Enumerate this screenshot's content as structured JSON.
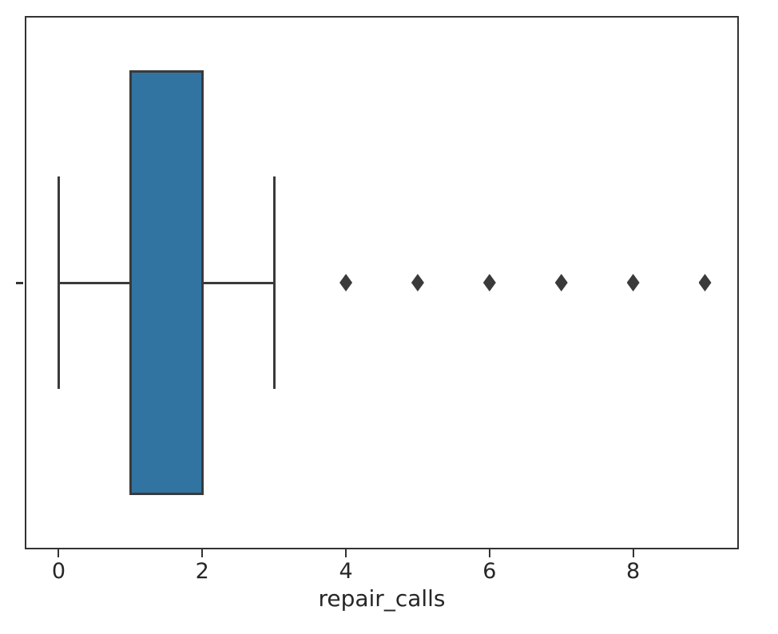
{
  "chart_data": {
    "type": "boxplot",
    "orientation": "horizontal",
    "title": "",
    "xlabel": "repair_calls",
    "ylabel": "",
    "xlim": [
      -0.45,
      9.45
    ],
    "x_ticks": [
      0,
      2,
      4,
      6,
      8
    ],
    "grid": false,
    "legend": false,
    "series": [
      {
        "name": "repair_calls",
        "whisker_low": 0,
        "q1": 1,
        "median": 1,
        "q3": 2,
        "whisker_high": 3,
        "outliers": [
          4,
          5,
          6,
          7,
          8,
          9
        ]
      }
    ],
    "colors": {
      "box_fill": "#3274a1",
      "box_edge": "#3a3a3a",
      "whisker": "#3a3a3a",
      "outlier": "#3a3a3a",
      "spine": "#333333",
      "text": "#262626"
    }
  }
}
